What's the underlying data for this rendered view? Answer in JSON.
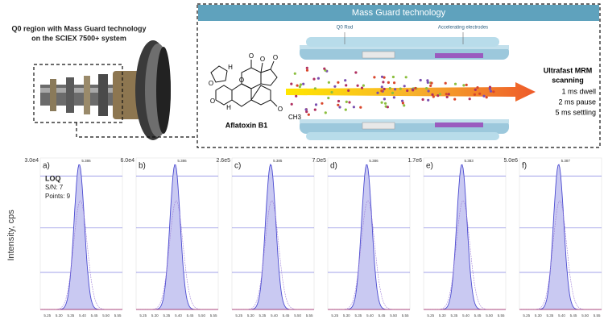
{
  "header": {
    "left_caption": [
      "Q0 region with Mass Guard technology",
      "on the SCIEX 7500+ system"
    ]
  },
  "diagram": {
    "title": "Mass Guard technology",
    "q0_rod": "Q0 Rod",
    "electrodes": "Accelerating electrodes",
    "compound": "Aflatoxin B1",
    "atoms": [
      "O",
      "O",
      "H",
      "H",
      "O",
      "O",
      "O",
      "O",
      "O",
      "CH3"
    ],
    "scan_title": [
      "Ultrafast MRM",
      "scanning"
    ],
    "scan_params": [
      "1 ms dwell",
      "2 ms pause",
      "5 ms settling"
    ]
  },
  "chromatograms": {
    "y_axis_label": "Intensity, cps",
    "x_ticks": [
      "5.25",
      "5.30",
      "5.35",
      "5.40",
      "5.45",
      "5.50",
      "5.55"
    ],
    "panels": [
      {
        "label": "a)",
        "scale": "3.0e4",
        "peak": "5.386",
        "notes": [
          "LOQ",
          "S/N: 7",
          "Points: 9"
        ]
      },
      {
        "label": "b)",
        "scale": "6.0e4",
        "peak": "5.386"
      },
      {
        "label": "c)",
        "scale": "2.6e5",
        "peak": "5.385"
      },
      {
        "label": "d)",
        "scale": "7.0e5",
        "peak": "5.386"
      },
      {
        "label": "e)",
        "scale": "1.7e6",
        "peak": "5.383"
      },
      {
        "label": "f)",
        "scale": "5.0e6",
        "peak": "5.387"
      }
    ]
  }
}
